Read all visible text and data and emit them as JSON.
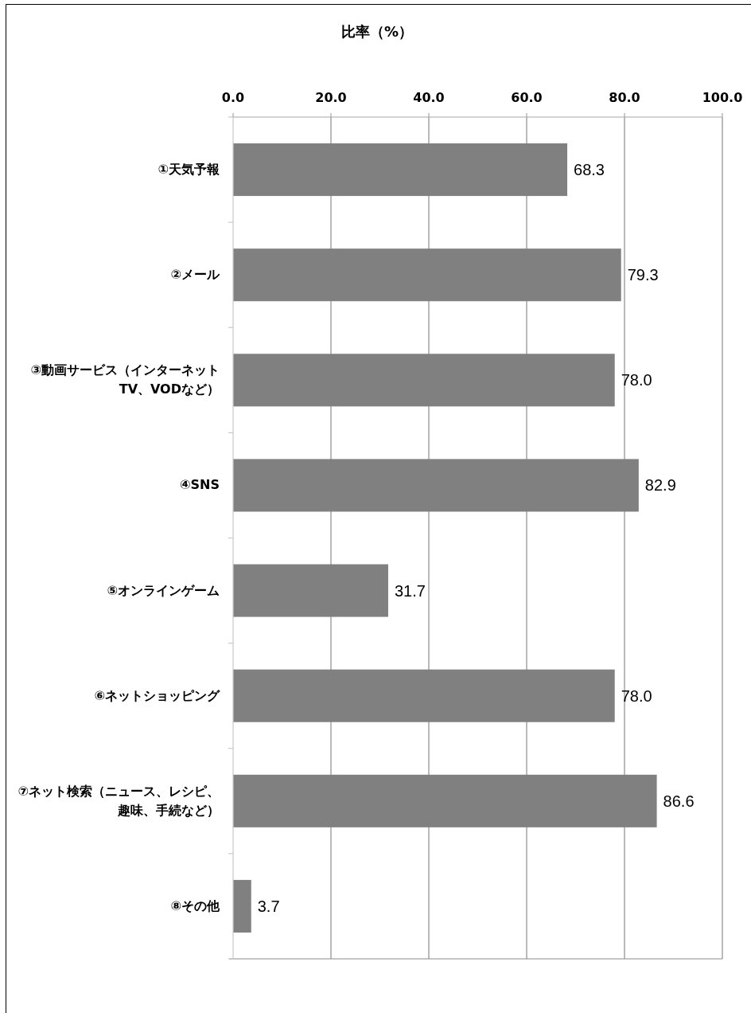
{
  "chart_data": {
    "type": "bar",
    "orientation": "horizontal",
    "title": "比率（%）",
    "categories": [
      "①天気予報",
      "②メール",
      "③動画サービス（インターネットTV、VODなど）",
      "④SNS",
      "⑤オンラインゲーム",
      "⑥ネットショッピング",
      "⑦ネット検索（ニュース、レシピ、趣味、手続など）",
      "⑧その他"
    ],
    "values": [
      68.3,
      79.3,
      78.0,
      82.9,
      31.7,
      78.0,
      86.6,
      3.7
    ],
    "value_labels": [
      "68.3",
      "79.3",
      "78.0",
      "82.9",
      "31.7",
      "78.0",
      "86.6",
      "3.7"
    ],
    "color": "#808080",
    "xlim": [
      0,
      100
    ],
    "xticks": [
      {
        "value": 0,
        "label": "0.0"
      },
      {
        "value": 20,
        "label": "20.0"
      },
      {
        "value": 40,
        "label": "40.0"
      },
      {
        "value": 60,
        "label": "60.0"
      },
      {
        "value": 80,
        "label": "80.0"
      },
      {
        "value": 100,
        "label": "100.0"
      }
    ],
    "grid": "x"
  }
}
